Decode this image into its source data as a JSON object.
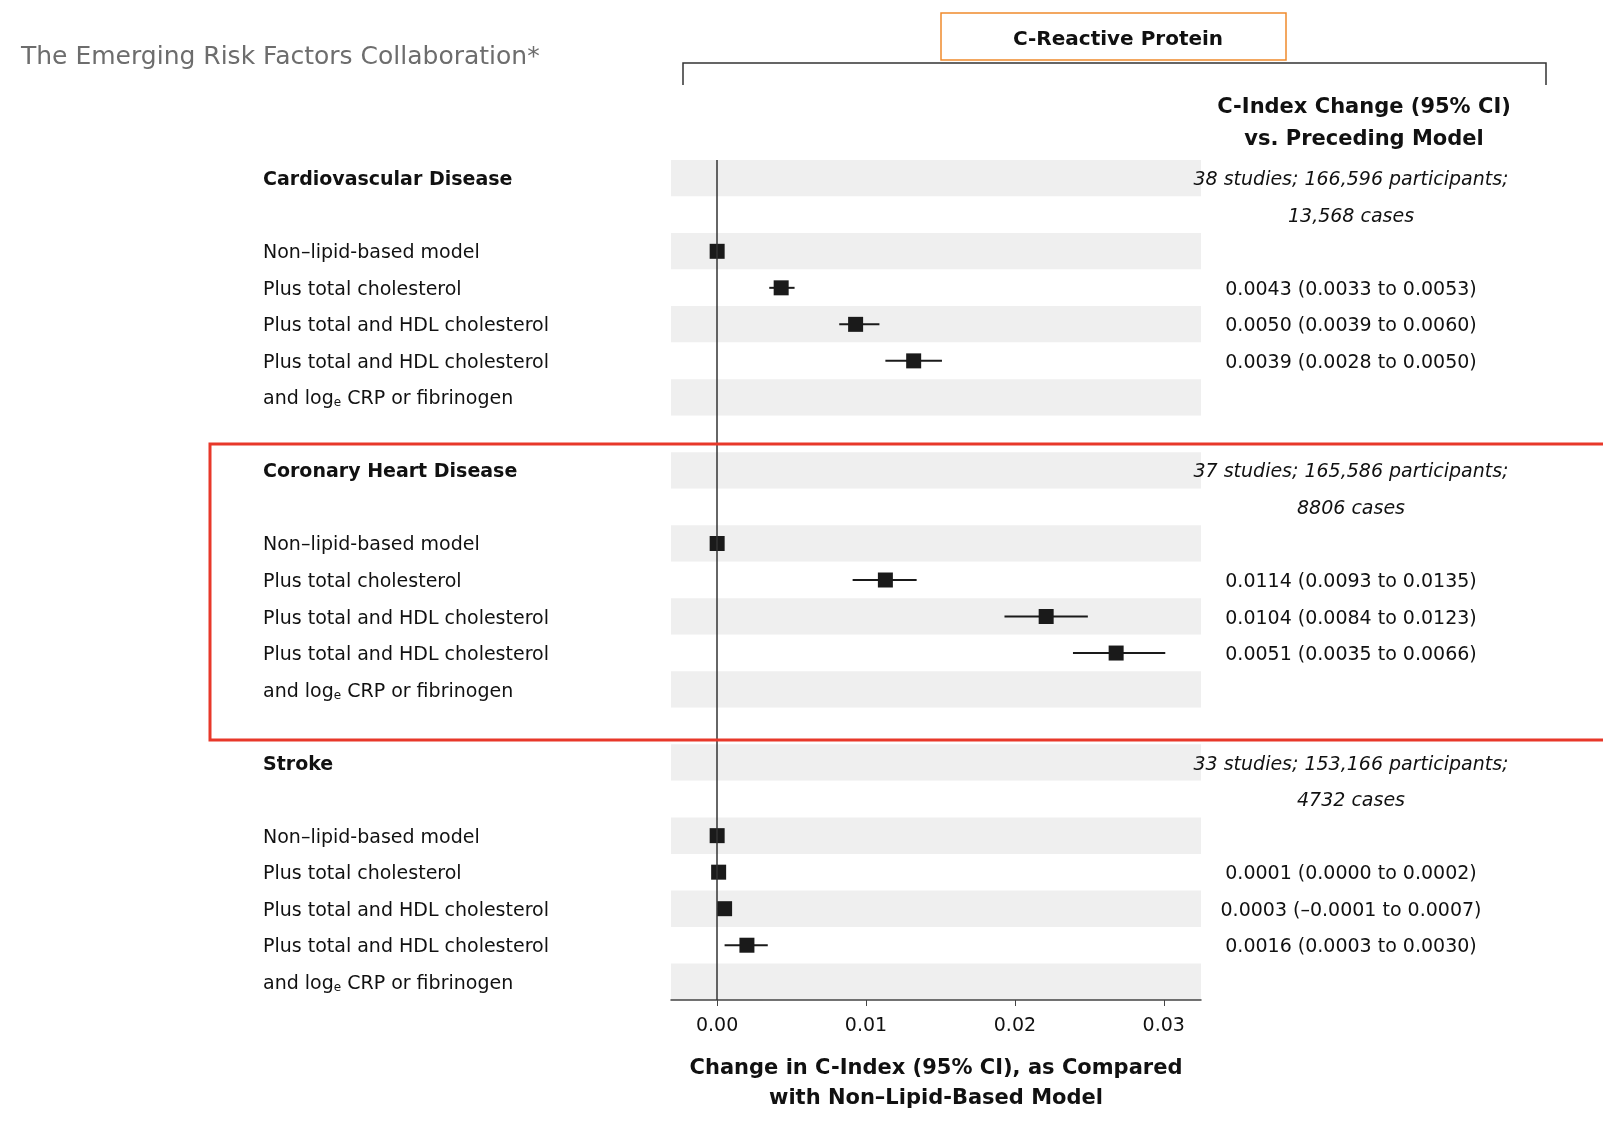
{
  "chart_data": {
    "type": "scatter",
    "orientation": "horizontal",
    "title": "The Emerging Risk Factors Collaboration*",
    "subtitle": "C-Reactive Protein",
    "xlabel": "Change in C-Index (95% CI), as Compared\nwith Non–Lipid-Based Model",
    "annotations": [
      "C-Index Change (95% CI)\nvs. Preceding Model"
    ],
    "categories": [
      "Cardiovascular Disease",
      null,
      "Non–lipid-based model",
      "Plus total cholesterol",
      "Plus total and HDL cholesterol",
      "Plus total and HDL cholesterol",
      "and log$_{e}$ CRP or fibrinogen",
      null,
      "Coronary Heart Disease",
      null,
      "Non–lipid-based model",
      "Plus total cholesterol",
      "Plus total and HDL cholesterol",
      "Plus total and HDL cholesterol",
      "and log$_{e}$ CRP or fibrinogen",
      null,
      "Stroke",
      null,
      "Non–lipid-based model",
      "Plus total cholesterol",
      "Plus total and HDL cholesterol",
      "Plus total and HDL cholesterol",
      "and log$_{e}$ CRP or fibrinogen"
    ],
    "values": [
      null,
      null,
      0,
      0.0043,
      0.0093,
      0.0132,
      null,
      null,
      null,
      null,
      0,
      0.0113,
      0.0221,
      0.0268,
      null,
      null,
      null,
      null,
      0,
      0.0001,
      0.0005,
      0.002,
      null
    ],
    "errors": [
      null,
      null,
      null,
      [
        0.0035,
        0.0052
      ],
      [
        0.0082,
        0.0109
      ],
      [
        0.0113,
        0.0151
      ],
      null,
      null,
      null,
      null,
      null,
      [
        0.0091,
        0.0134
      ],
      [
        0.0193,
        0.0249
      ],
      [
        0.0239,
        0.0301
      ],
      null,
      null,
      null,
      null,
      null,
      [
        0,
        0.0002
      ],
      [
        0,
        0.0008
      ],
      [
        0.0005,
        0.0034
      ],
      null
    ],
    "value_labels": [
      "38 studies; 166,596 participants;",
      "13,568 cases",
      null,
      "0.0043 (0.0033 to 0.0053)",
      "0.0050 (0.0039 to 0.0060)",
      "0.0039 (0.0028 to 0.0050)",
      null,
      null,
      "37 studies; 165,586 participants;",
      "8806 cases",
      null,
      "0.0114 (0.0093 to 0.0135)",
      "0.0104 (0.0084 to 0.0123)",
      "0.0051 (0.0035 to 0.0066)",
      null,
      null,
      "33 studies; 153,166 participants;",
      "4732 cases",
      null,
      "0.0001 (0.0000 to 0.0002)",
      "0.0003 (–0.0001 to 0.0007)",
      "0.0016 (0.0003 to 0.0030)",
      null
    ],
    "color": "#1a1a1a",
    "marker": "square",
    "xlim": [
      -0.0031,
      0.0325
    ],
    "xticks": [
      {
        "value": 0,
        "label": "0.00"
      },
      {
        "value": 0.01,
        "label": "0.01"
      },
      {
        "value": 0.02,
        "label": "0.02"
      },
      {
        "value": 0.03,
        "label": "0.03"
      }
    ],
    "ref_lines": [
      {
        "axis": "x",
        "value": 0,
        "color": "#333333"
      }
    ]
  }
}
